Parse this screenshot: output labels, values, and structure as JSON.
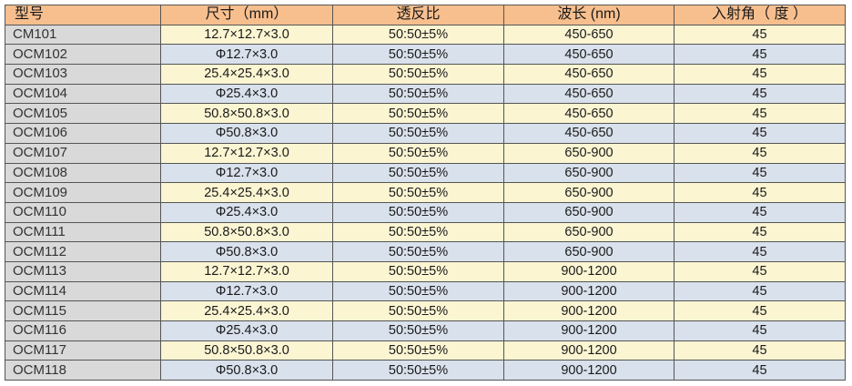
{
  "table": {
    "headers": [
      "型号",
      "尺寸（mm）",
      "透反比",
      "波长 (nm)",
      "入射角（ 度 ）"
    ],
    "rows": [
      [
        "CM101",
        "12.7×12.7×3.0",
        "50:50±5%",
        "450-650",
        "45"
      ],
      [
        "OCM102",
        "Φ12.7×3.0",
        "50:50±5%",
        "450-650",
        "45"
      ],
      [
        "OCM103",
        "25.4×25.4×3.0",
        "50:50±5%",
        "450-650",
        "45"
      ],
      [
        "OCM104",
        "Φ25.4×3.0",
        "50:50±5%",
        "450-650",
        "45"
      ],
      [
        "OCM105",
        "50.8×50.8×3.0",
        "50:50±5%",
        "450-650",
        "45"
      ],
      [
        "OCM106",
        "Φ50.8×3.0",
        "50:50±5%",
        "450-650",
        "45"
      ],
      [
        "OCM107",
        "12.7×12.7×3.0",
        "50:50±5%",
        "650-900",
        "45"
      ],
      [
        "OCM108",
        "Φ12.7×3.0",
        "50:50±5%",
        "650-900",
        "45"
      ],
      [
        "OCM109",
        "25.4×25.4×3.0",
        "50:50±5%",
        "650-900",
        "45"
      ],
      [
        "OCM110",
        "Φ25.4×3.0",
        "50:50±5%",
        "650-900",
        "45"
      ],
      [
        "OCM111",
        "50.8×50.8×3.0",
        "50:50±5%",
        "650-900",
        "45"
      ],
      [
        "OCM112",
        "Φ50.8×3.0",
        "50:50±5%",
        "650-900",
        "45"
      ],
      [
        "OCM113",
        "12.7×12.7×3.0",
        "50:50±5%",
        "900-1200",
        "45"
      ],
      [
        "OCM114",
        "Φ12.7×3.0",
        "50:50±5%",
        "900-1200",
        "45"
      ],
      [
        "OCM115",
        "25.4×25.4×3.0",
        "50:50±5%",
        "900-1200",
        "45"
      ],
      [
        "OCM116",
        "Φ25.4×3.0",
        "50:50±5%",
        "900-1200",
        "45"
      ],
      [
        "OCM117",
        "50.8×50.8×3.0",
        "50:50±5%",
        "900-1200",
        "45"
      ],
      [
        "OCM118",
        "Φ50.8×3.0",
        "50:50±5%",
        "900-1200",
        "45"
      ]
    ]
  },
  "colors": {
    "header": "#f8bf8e",
    "model_column": "#d9d9d9",
    "row_yellow": "#fbf5d2",
    "row_blue": "#d8e1ec"
  }
}
